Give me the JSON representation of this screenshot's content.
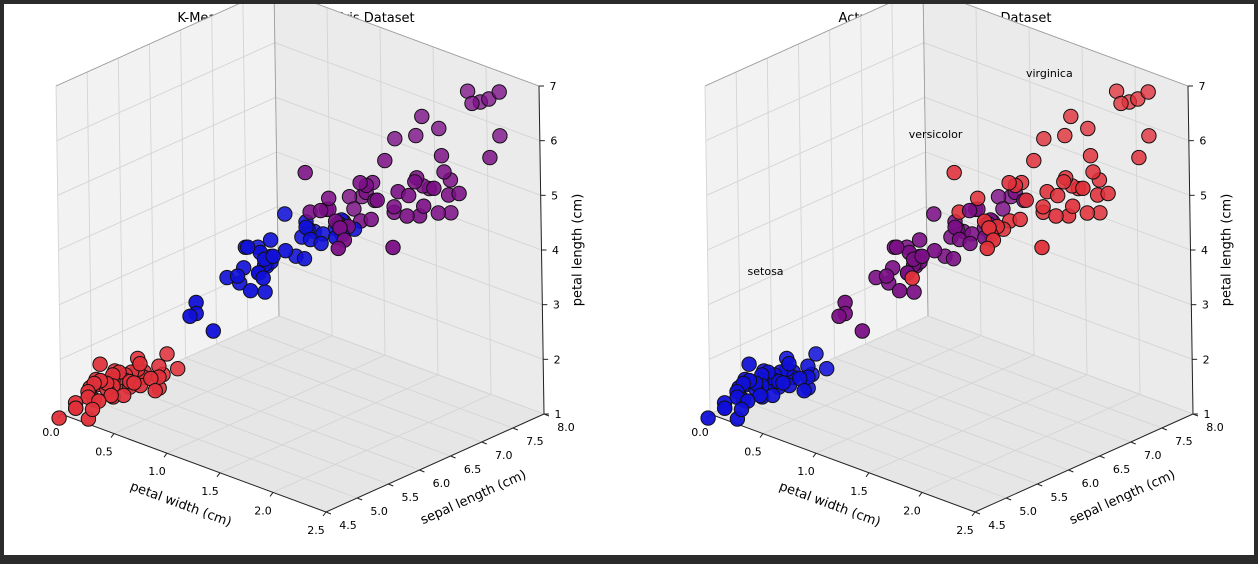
{
  "chart_data": [
    {
      "type": "scatter3d",
      "title": "K-Means Clusters for the Iris Dataset",
      "xlabel": "petal width (cm)",
      "ylabel": "sepal length (cm)",
      "zlabel": "petal length (cm)",
      "xlim": [
        0.0,
        2.5
      ],
      "ylim": [
        4.5,
        8.0
      ],
      "zlim": [
        1,
        7
      ],
      "xticks": [
        "0.0",
        "0.5",
        "1.0",
        "1.5",
        "2.0",
        "2.5"
      ],
      "yticks": [
        "4.5",
        "5.0",
        "5.5",
        "6.0",
        "6.5",
        "7.0",
        "7.5",
        "8.0"
      ],
      "zticks": [
        "1",
        "2",
        "3",
        "4",
        "5",
        "6",
        "7"
      ],
      "grid": true,
      "annotations": [],
      "colors": {
        "cluster_0": "#7b0f86",
        "cluster_1": "#1010d8",
        "cluster_2": "#e0303a"
      }
    },
    {
      "type": "scatter3d",
      "title": "Actual Labels for the Iris Dataset",
      "xlabel": "petal width (cm)",
      "ylabel": "sepal length (cm)",
      "zlabel": "petal length (cm)",
      "xlim": [
        0.0,
        2.5
      ],
      "ylim": [
        4.5,
        8.0
      ],
      "zlim": [
        1,
        7
      ],
      "xticks": [
        "0.0",
        "0.5",
        "1.0",
        "1.5",
        "2.0",
        "2.5"
      ],
      "yticks": [
        "4.5",
        "5.0",
        "5.5",
        "6.0",
        "6.5",
        "7.0",
        "7.5",
        "8.0"
      ],
      "zticks": [
        "1",
        "2",
        "3",
        "4",
        "5",
        "6",
        "7"
      ],
      "grid": true,
      "annotations": [
        "setosa",
        "versicolor",
        "virginica"
      ],
      "colors": {
        "setosa": "#1010d8",
        "versicolor": "#7b0f86",
        "virginica": "#e0303a"
      }
    }
  ]
}
